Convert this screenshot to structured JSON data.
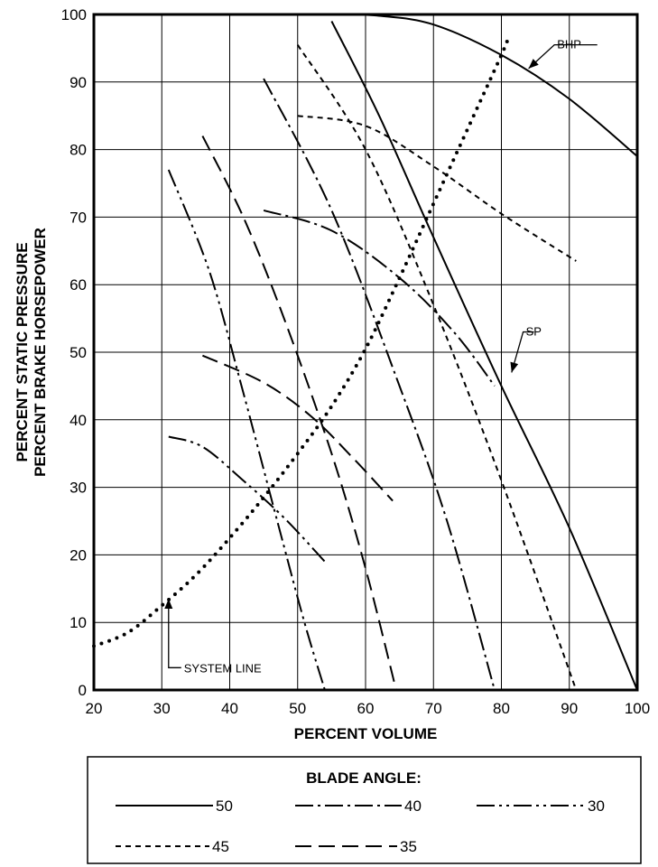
{
  "chart_data": {
    "type": "line",
    "title": "",
    "xlabel": "PERCENT VOLUME",
    "ylabel": [
      "PERCENT STATIC PRESSURE",
      "PERCENT BRAKE HORSEPOWER"
    ],
    "xlim": [
      20,
      100
    ],
    "ylim": [
      0,
      100
    ],
    "xticks": [
      20,
      30,
      40,
      50,
      60,
      70,
      80,
      90,
      100
    ],
    "yticks": [
      0,
      10,
      20,
      30,
      40,
      50,
      60,
      70,
      80,
      90,
      100
    ],
    "grid": true,
    "legend": {
      "title": "BLADE ANGLE:",
      "position": "bottom",
      "entries": [
        {
          "label": "50",
          "style": "solid"
        },
        {
          "label": "40",
          "style": "long-dash-dot"
        },
        {
          "label": "30",
          "style": "long-dash-dot-dot"
        },
        {
          "label": "45",
          "style": "short-dash"
        },
        {
          "label": "35",
          "style": "long-dash"
        }
      ]
    },
    "series": [
      {
        "blade_angle": "50",
        "curve": "SP",
        "style": "solid",
        "x": [
          55,
          62,
          70,
          80,
          90,
          100
        ],
        "y": [
          99,
          85,
          67,
          45,
          24,
          0
        ]
      },
      {
        "blade_angle": "50",
        "curve": "BHP",
        "style": "solid",
        "x": [
          55,
          62,
          70,
          80,
          90,
          100
        ],
        "y": [
          100,
          99.8,
          98.5,
          94,
          87.5,
          79
        ]
      },
      {
        "blade_angle": "45",
        "curve": "SP",
        "style": "short-dash",
        "x": [
          50,
          60,
          70,
          80,
          91
        ],
        "y": [
          95.5,
          80,
          57,
          31,
          0
        ]
      },
      {
        "blade_angle": "45",
        "curve": "BHP",
        "style": "short-dash",
        "x": [
          50,
          60,
          70,
          80,
          91
        ],
        "y": [
          85,
          83.5,
          77.5,
          70.5,
          63.5
        ]
      },
      {
        "blade_angle": "40",
        "curve": "SP",
        "style": "long-dash-dot",
        "x": [
          45,
          55,
          65,
          72,
          79
        ],
        "y": [
          90.5,
          71,
          45,
          25,
          0
        ]
      },
      {
        "blade_angle": "40",
        "curve": "BHP",
        "style": "long-dash-dot",
        "x": [
          45,
          55,
          65,
          73,
          79
        ],
        "y": [
          71,
          68,
          61,
          53,
          45
        ]
      },
      {
        "blade_angle": "35",
        "curve": "SP",
        "style": "long-dash",
        "x": [
          36,
          42,
          48,
          55,
          60,
          64.5
        ],
        "y": [
          82,
          70,
          55,
          35,
          18,
          0
        ]
      },
      {
        "blade_angle": "35",
        "curve": "BHP",
        "style": "long-dash",
        "x": [
          36,
          45,
          52,
          58,
          64
        ],
        "y": [
          49.5,
          45.5,
          40.5,
          34.5,
          28
        ]
      },
      {
        "blade_angle": "30",
        "curve": "SP",
        "style": "long-dash-dot-dot",
        "x": [
          31,
          37,
          42,
          47,
          51,
          54
        ],
        "y": [
          77,
          62,
          44,
          25,
          10,
          0
        ]
      },
      {
        "blade_angle": "30",
        "curve": "BHP",
        "style": "long-dash-dot-dot",
        "x": [
          31,
          36,
          42,
          48,
          54
        ],
        "y": [
          37.5,
          36,
          31,
          25.5,
          19
        ]
      }
    ],
    "system_line": {
      "label": "SYSTEM LINE",
      "style": "dotted",
      "x": [
        20,
        25,
        30,
        35,
        40,
        45,
        50,
        55,
        60,
        65,
        70,
        75,
        80,
        81
      ],
      "y": [
        6.5,
        8.5,
        12.5,
        17,
        22.5,
        28.5,
        35,
        42,
        50.5,
        61,
        72,
        83,
        94,
        96.5
      ]
    },
    "annotations": [
      {
        "text": "BHP",
        "points_to": {
          "x": 84,
          "y": 92
        }
      },
      {
        "text": "SP",
        "points_to": {
          "x": 81.5,
          "y": 47
        }
      },
      {
        "text": "SYSTEM LINE",
        "points_to": {
          "x": 31,
          "y": 13.5
        }
      }
    ]
  }
}
